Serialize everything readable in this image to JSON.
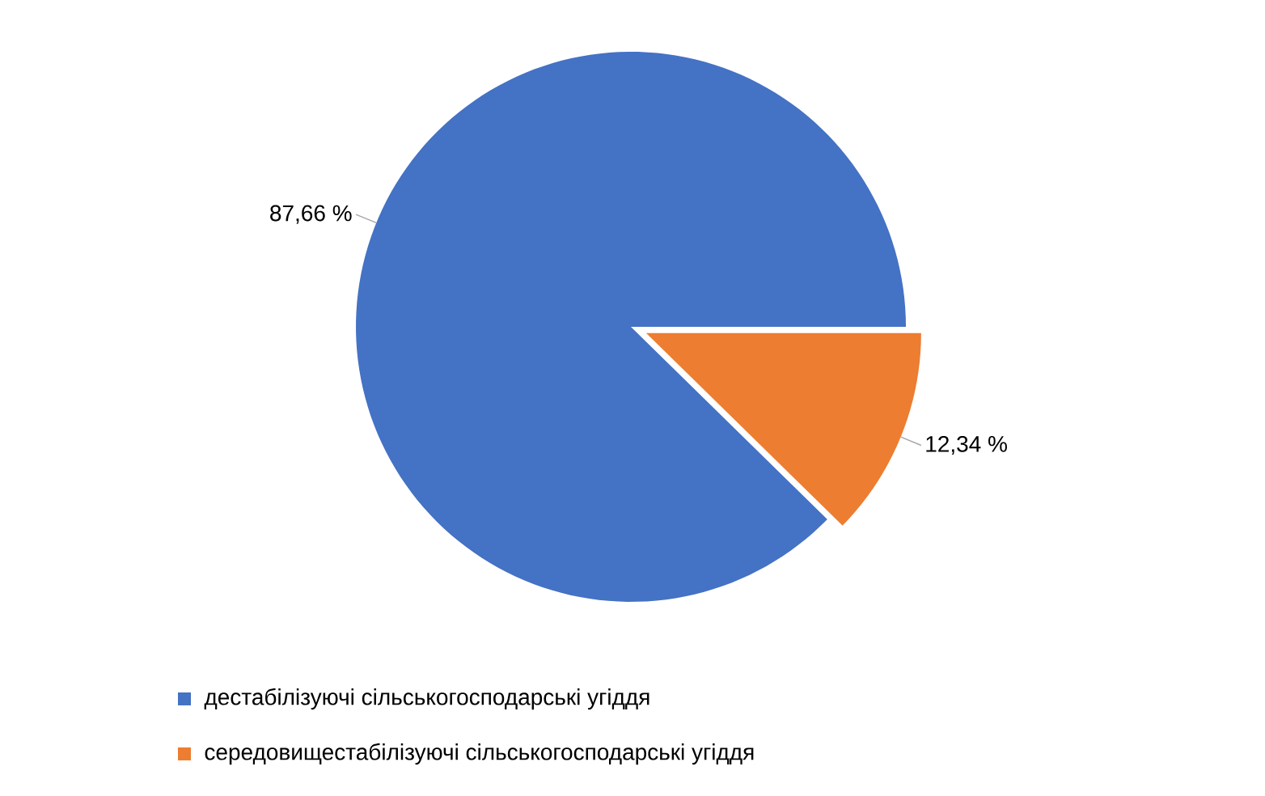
{
  "chart_data": {
    "type": "pie",
    "categories": [
      "дестабілізуючі сільськогосподарські угіддя",
      "середовищестабілізуючі сільськогосподарські угіддя"
    ],
    "values": [
      87.66,
      12.34
    ],
    "value_labels": [
      "87,66 %",
      "12,34 %"
    ],
    "colors": [
      "#4472c4",
      "#ed7d31"
    ],
    "legend": "bottom"
  }
}
